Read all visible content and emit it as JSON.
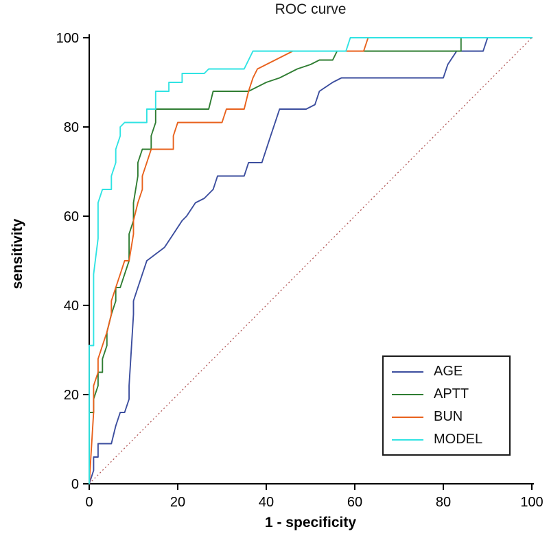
{
  "chart_data": {
    "type": "line",
    "title": "ROC curve",
    "xlabel": "1 - specificity",
    "ylabel": "sensitivity",
    "xlim": [
      0,
      100
    ],
    "ylim": [
      0,
      100
    ],
    "x_ticks": [
      0,
      20,
      40,
      60,
      80,
      100
    ],
    "y_ticks": [
      0,
      20,
      40,
      60,
      80,
      100
    ],
    "grid": false,
    "legend_position": "lower right",
    "axis_color": "#000000",
    "reference_line": {
      "name": "diagonal-reference",
      "color": "#b25757",
      "style": "dotted",
      "points": [
        [
          0,
          0
        ],
        [
          100,
          100
        ]
      ]
    },
    "series": [
      {
        "name": "AGE",
        "color": "#3b4d9e",
        "points": [
          [
            0,
            0
          ],
          [
            1,
            3
          ],
          [
            1,
            6
          ],
          [
            2,
            6
          ],
          [
            2,
            9
          ],
          [
            5,
            9
          ],
          [
            6,
            13
          ],
          [
            7,
            16
          ],
          [
            8,
            16
          ],
          [
            9,
            19
          ],
          [
            9,
            22
          ],
          [
            10,
            38
          ],
          [
            10,
            41
          ],
          [
            11,
            44
          ],
          [
            12,
            47
          ],
          [
            13,
            50
          ],
          [
            17,
            53
          ],
          [
            19,
            56
          ],
          [
            21,
            59
          ],
          [
            22,
            60
          ],
          [
            24,
            63
          ],
          [
            26,
            64
          ],
          [
            28,
            66
          ],
          [
            29,
            69
          ],
          [
            35,
            69
          ],
          [
            36,
            72
          ],
          [
            39,
            72
          ],
          [
            40,
            75
          ],
          [
            41,
            78
          ],
          [
            42,
            81
          ],
          [
            43,
            84
          ],
          [
            49,
            84
          ],
          [
            51,
            85
          ],
          [
            52,
            88
          ],
          [
            55,
            90
          ],
          [
            57,
            91
          ],
          [
            80,
            91
          ],
          [
            81,
            94
          ],
          [
            83,
            97
          ],
          [
            89,
            97
          ],
          [
            90,
            100
          ],
          [
            100,
            100
          ]
        ]
      },
      {
        "name": "APTT",
        "color": "#2f7d32",
        "points": [
          [
            0,
            0
          ],
          [
            0,
            16
          ],
          [
            1,
            16
          ],
          [
            1,
            19
          ],
          [
            2,
            22
          ],
          [
            2,
            25
          ],
          [
            3,
            25
          ],
          [
            3,
            28
          ],
          [
            4,
            31
          ],
          [
            4,
            34
          ],
          [
            5,
            38
          ],
          [
            6,
            41
          ],
          [
            6,
            44
          ],
          [
            7,
            44
          ],
          [
            8,
            47
          ],
          [
            9,
            50
          ],
          [
            9,
            56
          ],
          [
            10,
            59
          ],
          [
            10,
            63
          ],
          [
            11,
            69
          ],
          [
            11,
            72
          ],
          [
            12,
            75
          ],
          [
            14,
            75
          ],
          [
            14,
            78
          ],
          [
            15,
            81
          ],
          [
            15,
            84
          ],
          [
            27,
            84
          ],
          [
            28,
            88
          ],
          [
            36,
            88
          ],
          [
            38,
            89
          ],
          [
            40,
            90
          ],
          [
            43,
            91
          ],
          [
            45,
            92
          ],
          [
            47,
            93
          ],
          [
            50,
            94
          ],
          [
            52,
            95
          ],
          [
            55,
            95
          ],
          [
            56,
            97
          ],
          [
            84,
            97
          ],
          [
            84,
            100
          ],
          [
            100,
            100
          ]
        ]
      },
      {
        "name": "BUN",
        "color": "#e8611c",
        "points": [
          [
            0,
            0
          ],
          [
            1,
            16
          ],
          [
            1,
            22
          ],
          [
            2,
            25
          ],
          [
            2,
            28
          ],
          [
            3,
            31
          ],
          [
            4,
            34
          ],
          [
            5,
            38
          ],
          [
            5,
            41
          ],
          [
            6,
            44
          ],
          [
            7,
            47
          ],
          [
            8,
            50
          ],
          [
            9,
            50
          ],
          [
            10,
            56
          ],
          [
            10,
            59
          ],
          [
            11,
            63
          ],
          [
            12,
            66
          ],
          [
            12,
            69
          ],
          [
            13,
            72
          ],
          [
            14,
            75
          ],
          [
            19,
            75
          ],
          [
            19,
            78
          ],
          [
            20,
            81
          ],
          [
            30,
            81
          ],
          [
            31,
            84
          ],
          [
            35,
            84
          ],
          [
            36,
            88
          ],
          [
            37,
            91
          ],
          [
            38,
            93
          ],
          [
            40,
            94
          ],
          [
            42,
            95
          ],
          [
            44,
            96
          ],
          [
            46,
            97
          ],
          [
            62,
            97
          ],
          [
            63,
            100
          ],
          [
            100,
            100
          ]
        ]
      },
      {
        "name": "MODEL",
        "color": "#2fe3e3",
        "points": [
          [
            0,
            0
          ],
          [
            0,
            31
          ],
          [
            1,
            31
          ],
          [
            1,
            47
          ],
          [
            2,
            55
          ],
          [
            2,
            63
          ],
          [
            3,
            66
          ],
          [
            5,
            66
          ],
          [
            5,
            69
          ],
          [
            6,
            72
          ],
          [
            6,
            75
          ],
          [
            7,
            78
          ],
          [
            7,
            80
          ],
          [
            8,
            81
          ],
          [
            13,
            81
          ],
          [
            13,
            84
          ],
          [
            15,
            84
          ],
          [
            15,
            88
          ],
          [
            18,
            88
          ],
          [
            18,
            90
          ],
          [
            21,
            90
          ],
          [
            21,
            92
          ],
          [
            26,
            92
          ],
          [
            27,
            93
          ],
          [
            35,
            93
          ],
          [
            36,
            95
          ],
          [
            37,
            97
          ],
          [
            58,
            97
          ],
          [
            59,
            100
          ],
          [
            100,
            100
          ]
        ]
      }
    ]
  }
}
